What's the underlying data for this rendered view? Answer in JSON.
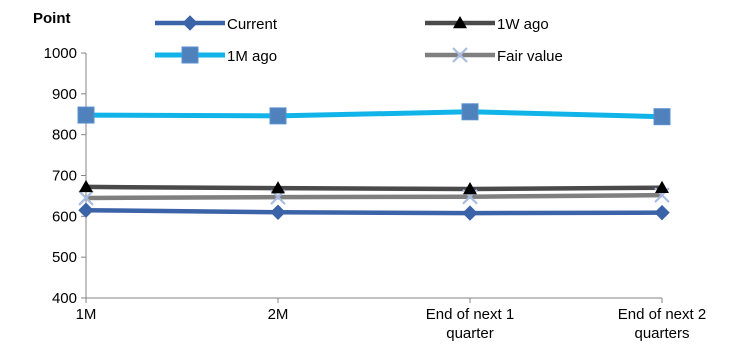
{
  "chart_data": {
    "type": "line",
    "title": "",
    "unit_label": "Point",
    "xlabel": "",
    "ylabel": "",
    "categories": [
      [
        "1M"
      ],
      [
        "2M"
      ],
      [
        "End of next 1",
        "quarter"
      ],
      [
        "End of next 2",
        "quarters"
      ]
    ],
    "ylim": [
      400,
      1000
    ],
    "yticks": [
      400,
      500,
      600,
      700,
      800,
      900,
      1000
    ],
    "grid": false,
    "legend_position": "top",
    "series": [
      {
        "name": "Current",
        "values": [
          615,
          610,
          608,
          609
        ],
        "color": "#3B63A8",
        "marker": "diamond"
      },
      {
        "name": "1W ago",
        "values": [
          672,
          669,
          667,
          670
        ],
        "color": "#4A4A4A",
        "marker": "triangle"
      },
      {
        "name": "1M ago",
        "values": [
          848,
          846,
          856,
          844
        ],
        "color": "#11B4E8",
        "marker": "square"
      },
      {
        "name": "Fair value",
        "values": [
          645,
          647,
          648,
          652
        ],
        "color": "#7F7F7F",
        "marker": "x"
      }
    ]
  }
}
